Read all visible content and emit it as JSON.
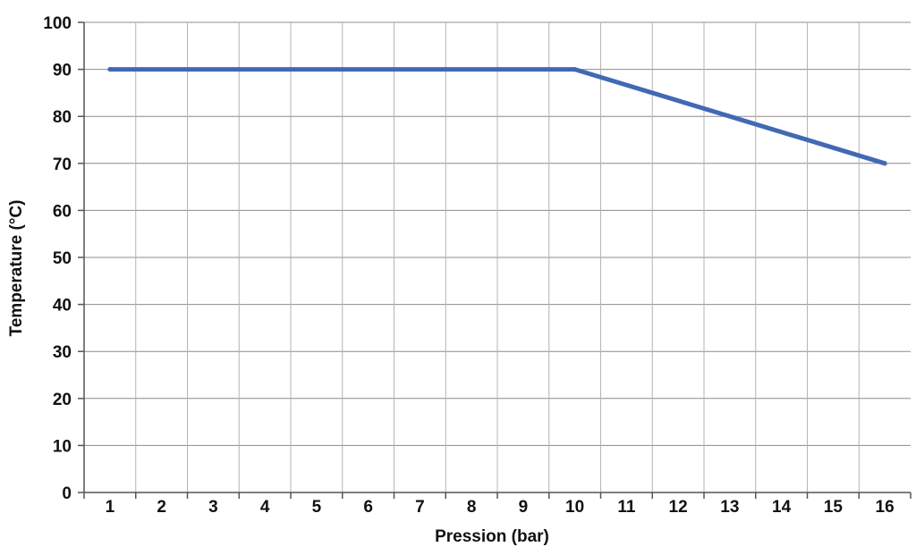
{
  "chart_data": {
    "type": "line",
    "xlabel": "Pression (bar)",
    "ylabel": "Temperature (°C)",
    "x_ticks": [
      "1",
      "2",
      "3",
      "4",
      "5",
      "6",
      "7",
      "8",
      "9",
      "10",
      "11",
      "12",
      "13",
      "14",
      "15",
      "16"
    ],
    "y_ticks": [
      "0",
      "10",
      "20",
      "30",
      "40",
      "50",
      "60",
      "70",
      "80",
      "90",
      "100"
    ],
    "xlim": [
      0.5,
      16.5
    ],
    "ylim": [
      0,
      100
    ],
    "grid": true,
    "legend": "none",
    "series": [
      {
        "color": "#4169b4",
        "x": [
          1,
          10,
          16
        ],
        "y": [
          90,
          90,
          70
        ]
      }
    ]
  }
}
